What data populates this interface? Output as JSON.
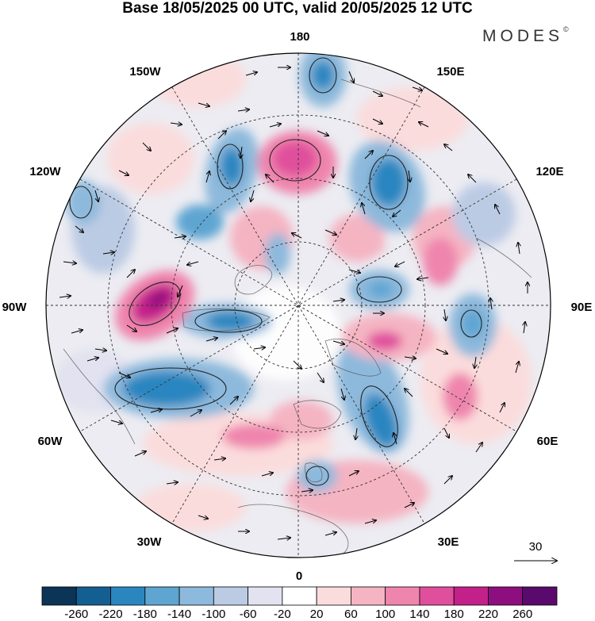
{
  "title": "Base 18/05/2025 00 UTC, valid 20/05/2025 12 UTC",
  "brand": "MODES",
  "brand_mark": "©",
  "longitude_labels": {
    "lon_180": "180",
    "lon_150w": "150W",
    "lon_150e": "150E",
    "lon_120w": "120W",
    "lon_120e": "120E",
    "lon_90w": "90W",
    "lon_90e": "90E",
    "lon_60w": "60W",
    "lon_60e": "60E",
    "lon_30w": "30W",
    "lon_30e": "30E",
    "lon_0": "0"
  },
  "reference_vector": {
    "label": "30",
    "icon": "arrow-right-icon"
  },
  "colorbar": {
    "ticks": [
      "-260",
      "-220",
      "-180",
      "-140",
      "-100",
      "-60",
      "-20",
      "20",
      "60",
      "100",
      "140",
      "180",
      "220",
      "260"
    ],
    "colors": [
      "#0b3456",
      "#145f92",
      "#2b86c0",
      "#5ea5d2",
      "#8db9dc",
      "#bccbe4",
      "#e2e2f0",
      "#ffffff",
      "#fbdcdc",
      "#f5b4c2",
      "#ef85ad",
      "#e04f9c",
      "#c4208a",
      "#8d0f7f",
      "#5a0a6d"
    ]
  }
}
